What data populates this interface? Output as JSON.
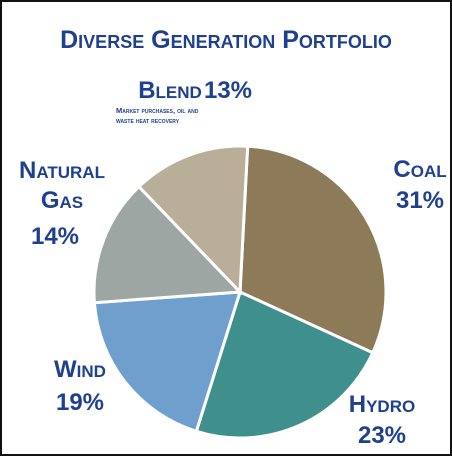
{
  "chart_data": {
    "type": "pie",
    "title": "Diverse Generation Portfolio",
    "categories": [
      "Coal",
      "Hydro",
      "Wind",
      "Natural Gas",
      "Blend"
    ],
    "values": [
      31,
      23,
      19,
      14,
      13
    ],
    "value_labels": [
      "31%",
      "23%",
      "19%",
      "14%",
      "13%"
    ],
    "colors": [
      "#8c7a58",
      "#3f8f8c",
      "#6f9fcc",
      "#9ea6a4",
      "#b9ae98"
    ],
    "annotation": "Market purchases, oil and waste heat recovery"
  }
}
